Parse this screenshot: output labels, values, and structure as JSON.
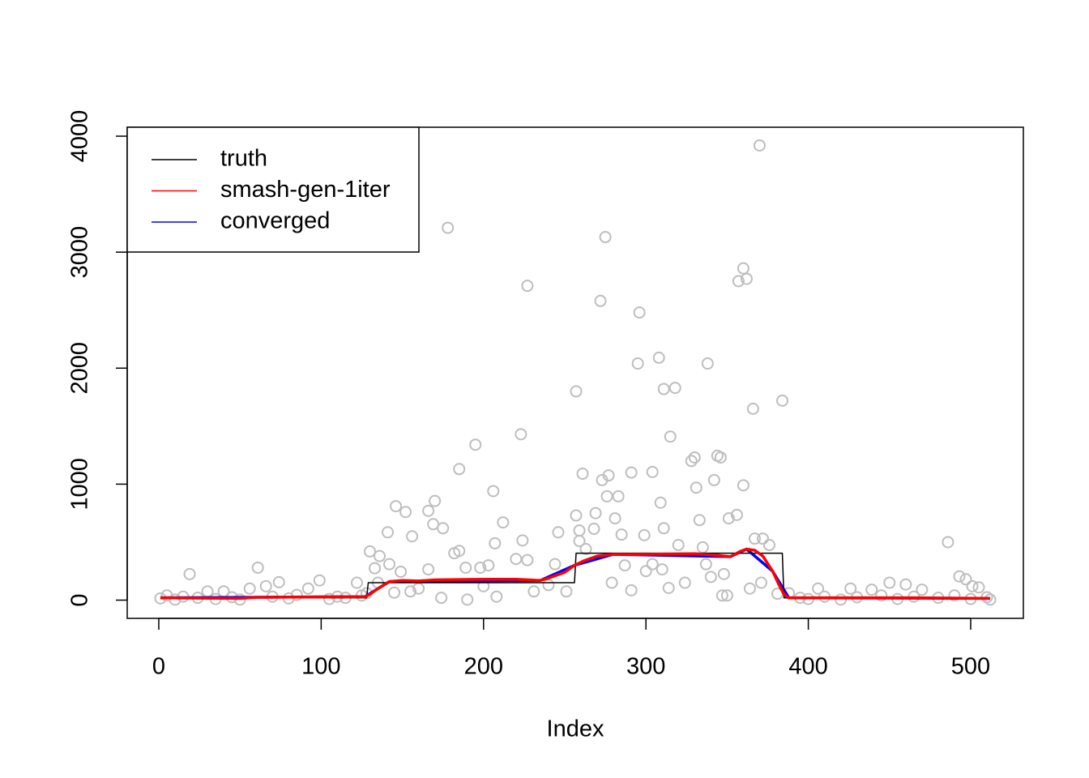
{
  "chart_data": {
    "type": "scatter",
    "xlabel": "Index",
    "xlim": [
      -19.44,
      532.44
    ],
    "ylim": [
      -157,
      4077
    ],
    "xticks": [
      0,
      100,
      200,
      300,
      400,
      500
    ],
    "yticks": [
      0,
      1000,
      2000,
      3000,
      4000
    ],
    "legend": "top-left",
    "points": {
      "color": "#bebebe",
      "x": [
        178,
        227,
        275,
        272,
        296,
        370,
        360,
        362,
        357,
        308,
        295,
        338,
        257,
        311,
        318,
        384,
        366,
        223,
        315,
        195,
        185,
        328,
        330,
        344,
        346,
        261,
        291,
        304,
        277,
        273,
        206,
        331,
        342,
        360,
        276,
        283,
        309,
        170,
        146,
        152,
        166,
        269,
        257,
        356,
        351,
        333,
        281,
        169,
        212,
        175,
        311,
        268,
        246,
        259,
        141,
        156,
        299,
        285,
        259,
        367,
        372,
        224,
        207,
        376,
        486,
        130,
        185,
        182,
        136,
        263,
        320,
        335,
        220,
        227,
        244,
        203,
        198,
        189,
        142,
        133,
        166,
        149,
        287,
        304,
        310,
        337,
        348,
        61,
        19,
        493,
        497,
        501,
        505,
        74,
        99,
        92,
        122,
        66,
        56,
        40,
        30,
        450,
        460,
        406,
        426,
        439,
        470,
        347,
        350,
        190,
        174,
        208,
        145,
        155,
        231,
        251,
        279,
        291,
        314,
        324,
        364,
        371,
        381,
        1,
        5,
        10,
        15,
        24,
        35,
        45,
        50,
        70,
        80,
        85,
        105,
        110,
        115,
        125,
        128,
        135,
        160,
        200,
        240,
        300,
        340,
        388,
        395,
        400,
        410,
        420,
        430,
        445,
        455,
        465,
        480,
        490,
        500,
        510,
        512
      ],
      "values": [
        3210,
        2710,
        3130,
        2580,
        2480,
        3920,
        2860,
        2770,
        2750,
        2090,
        2040,
        2040,
        1800,
        1820,
        1830,
        1720,
        1650,
        1430,
        1410,
        1340,
        1130,
        1200,
        1230,
        1245,
        1230,
        1090,
        1100,
        1105,
        1075,
        1035,
        940,
        970,
        1035,
        990,
        895,
        895,
        840,
        855,
        810,
        760,
        770,
        750,
        730,
        735,
        705,
        690,
        705,
        655,
        670,
        620,
        620,
        615,
        585,
        600,
        585,
        550,
        560,
        565,
        510,
        530,
        530,
        515,
        490,
        475,
        500,
        420,
        425,
        405,
        380,
        440,
        475,
        455,
        355,
        345,
        310,
        300,
        280,
        280,
        310,
        275,
        265,
        245,
        300,
        310,
        265,
        310,
        225,
        280,
        225,
        205,
        180,
        120,
        110,
        155,
        170,
        100,
        150,
        120,
        100,
        75,
        75,
        150,
        135,
        100,
        100,
        90,
        90,
        40,
        40,
        5,
        20,
        30,
        65,
        75,
        75,
        75,
        150,
        85,
        105,
        150,
        100,
        150,
        55,
        15,
        40,
        5,
        30,
        20,
        10,
        25,
        5,
        30,
        15,
        45,
        10,
        30,
        20,
        40,
        60,
        150,
        100,
        120,
        130,
        250,
        200,
        60,
        20,
        10,
        30,
        5,
        25,
        40,
        10,
        30,
        20,
        40,
        10,
        25,
        5
      ]
    },
    "series": [
      {
        "name": "truth",
        "color": "#000000",
        "x": [
          1,
          128,
          129,
          256,
          257,
          384,
          385,
          512
        ],
        "values": [
          20,
          20,
          150,
          150,
          405,
          405,
          20,
          20
        ]
      },
      {
        "name": "smash-gen-1iter",
        "color": "#ff0000",
        "x": [
          1,
          50,
          60,
          127,
          130,
          135,
          142,
          150,
          160,
          170,
          200,
          220,
          235,
          240,
          250,
          256,
          262,
          270,
          280,
          300,
          330,
          345,
          352,
          358,
          362,
          367,
          372,
          378,
          382,
          385,
          388,
          420,
          470,
          512
        ],
        "values": [
          20,
          15,
          25,
          30,
          50,
          100,
          160,
          170,
          165,
          175,
          180,
          180,
          170,
          190,
          240,
          300,
          340,
          380,
          395,
          395,
          400,
          385,
          375,
          420,
          440,
          430,
          380,
          250,
          130,
          50,
          20,
          20,
          20,
          15
        ]
      },
      {
        "name": "converged",
        "color": "#0000ff",
        "x": [
          1,
          127,
          142,
          235,
          256,
          280,
          352,
          362,
          378,
          388,
          512
        ],
        "values": [
          20,
          30,
          160,
          170,
          300,
          395,
          375,
          440,
          250,
          20,
          15
        ]
      }
    ]
  }
}
